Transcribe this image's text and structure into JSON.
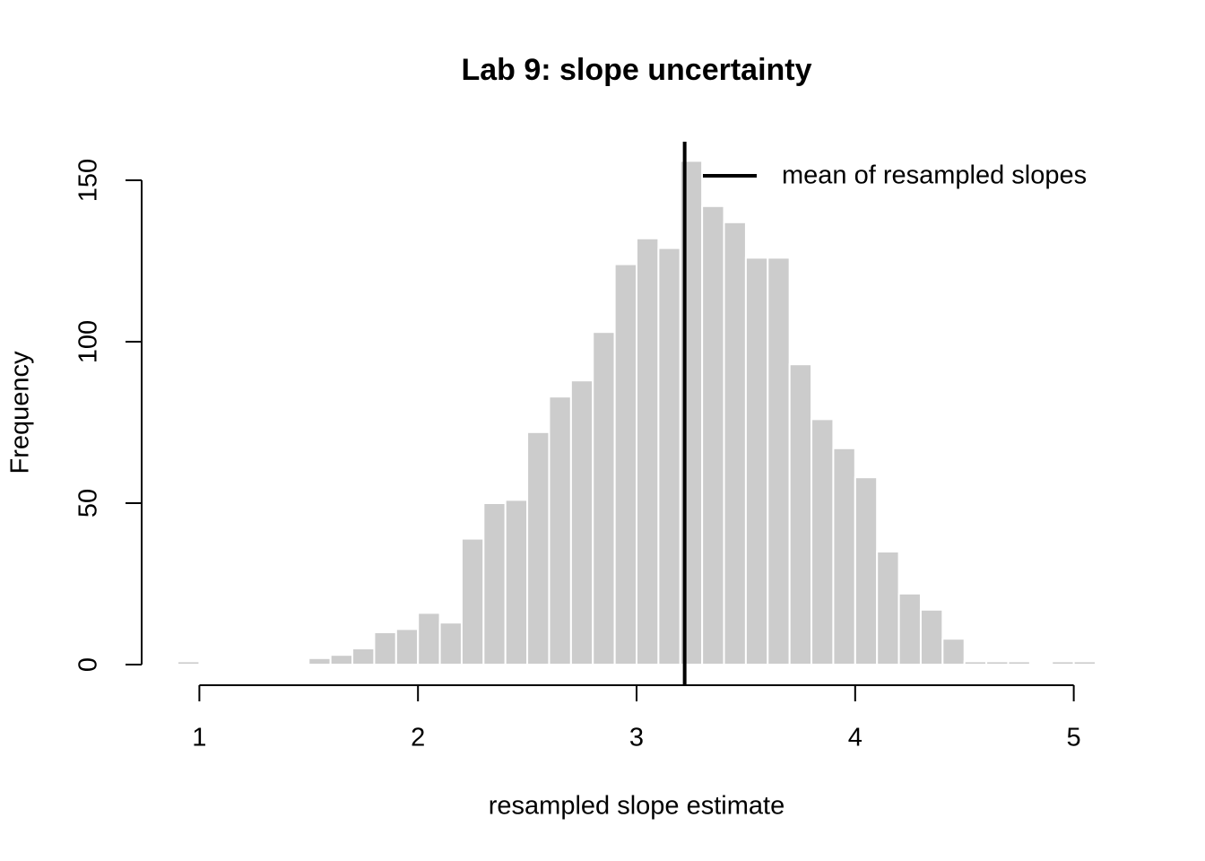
{
  "chart_data": {
    "type": "histogram",
    "title": "Lab 9: slope uncertainty",
    "x_label": "resampled slope estimate",
    "y_label": "Frequency",
    "bins": [
      0.9,
      1.0,
      1.1,
      1.2,
      1.3,
      1.4,
      1.5,
      1.6,
      1.7,
      1.8,
      1.9,
      2.0,
      2.1,
      2.2,
      2.3,
      2.4,
      2.5,
      2.6,
      2.7,
      2.8,
      2.9,
      3.0,
      3.1,
      3.2,
      3.3,
      3.4,
      3.5,
      3.6,
      3.7,
      3.8,
      3.9,
      4.0,
      4.1,
      4.2,
      4.3,
      4.4,
      4.5,
      4.6,
      4.7,
      4.8,
      4.9,
      5.0,
      5.1
    ],
    "values": [
      1,
      0,
      0,
      0,
      0,
      0,
      2,
      3,
      5,
      10,
      11,
      16,
      13,
      39,
      50,
      51,
      72,
      83,
      88,
      103,
      124,
      132,
      129,
      156,
      142,
      137,
      126,
      126,
      93,
      76,
      67,
      58,
      35,
      22,
      17,
      8,
      1,
      1,
      1,
      0,
      1,
      1
    ],
    "color": "#cccccc",
    "mean": 3.22,
    "legend_label": "mean of resampled slopes",
    "xlim": [
      0.9,
      5.1
    ],
    "xticks": [
      1,
      2,
      3,
      4,
      5
    ],
    "ylim": [
      0,
      150
    ],
    "yticks": [
      0,
      50,
      100,
      150
    ]
  }
}
